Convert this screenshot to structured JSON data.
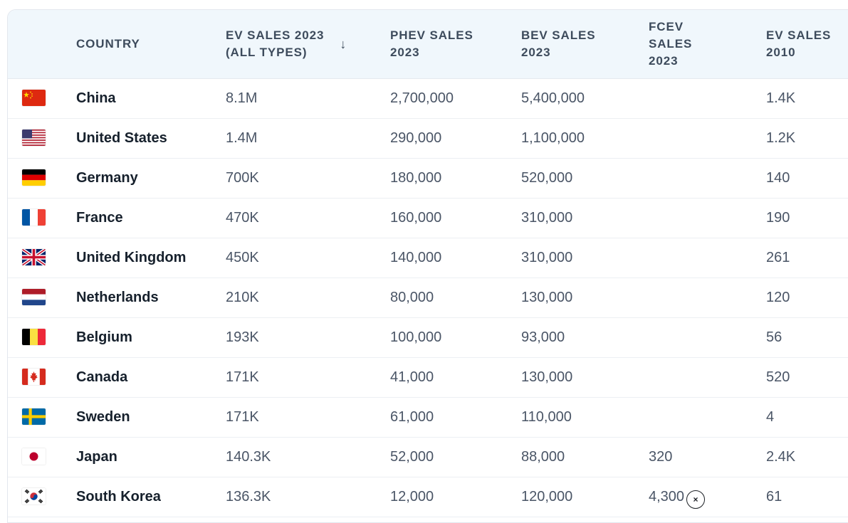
{
  "table": {
    "columns": {
      "country": "COUNTRY",
      "ev_sales_2023_line1": "EV SALES 2023",
      "ev_sales_2023_line2": "(ALL TYPES)",
      "phev_line1": "PHEV SALES",
      "phev_line2": "2023",
      "bev_line1": "BEV SALES",
      "bev_line2": "2023",
      "fcev_line1": "FCEV",
      "fcev_line2": "SALES",
      "fcev_line3": "2023",
      "ev2010_line1": "EV SALES",
      "ev2010_line2": "2010"
    },
    "sort_icon": "arrow-down-icon",
    "rows": [
      {
        "flag": "china-flag",
        "country": "China",
        "ev_2023": "8.1M",
        "phev_2023": "2,700,000",
        "bev_2023": "5,400,000",
        "fcev_2023": "",
        "ev_2010": "1.4K"
      },
      {
        "flag": "usa-flag",
        "country": "United States",
        "ev_2023": "1.4M",
        "phev_2023": "290,000",
        "bev_2023": "1,100,000",
        "fcev_2023": "",
        "ev_2010": "1.2K"
      },
      {
        "flag": "germany-flag",
        "country": "Germany",
        "ev_2023": "700K",
        "phev_2023": "180,000",
        "bev_2023": "520,000",
        "fcev_2023": "",
        "ev_2010": "140"
      },
      {
        "flag": "france-flag",
        "country": "France",
        "ev_2023": "470K",
        "phev_2023": "160,000",
        "bev_2023": "310,000",
        "fcev_2023": "",
        "ev_2010": "190"
      },
      {
        "flag": "uk-flag",
        "country": "United Kingdom",
        "ev_2023": "450K",
        "phev_2023": "140,000",
        "bev_2023": "310,000",
        "fcev_2023": "",
        "ev_2010": "261"
      },
      {
        "flag": "netherlands-flag",
        "country": "Netherlands",
        "ev_2023": "210K",
        "phev_2023": "80,000",
        "bev_2023": "130,000",
        "fcev_2023": "",
        "ev_2010": "120"
      },
      {
        "flag": "belgium-flag",
        "country": "Belgium",
        "ev_2023": "193K",
        "phev_2023": "100,000",
        "bev_2023": "93,000",
        "fcev_2023": "",
        "ev_2010": "56"
      },
      {
        "flag": "canada-flag",
        "country": "Canada",
        "ev_2023": "171K",
        "phev_2023": "41,000",
        "bev_2023": "130,000",
        "fcev_2023": "",
        "ev_2010": "520"
      },
      {
        "flag": "sweden-flag",
        "country": "Sweden",
        "ev_2023": "171K",
        "phev_2023": "61,000",
        "bev_2023": "110,000",
        "fcev_2023": "",
        "ev_2010": "4"
      },
      {
        "flag": "japan-flag",
        "country": "Japan",
        "ev_2023": "140.3K",
        "phev_2023": "52,000",
        "bev_2023": "88,000",
        "fcev_2023": "320",
        "ev_2010": "2.4K"
      },
      {
        "flag": "south-korea-flag",
        "country": "South Korea",
        "ev_2023": "136.3K",
        "phev_2023": "12,000",
        "bev_2023": "120,000",
        "fcev_2023": "4,300",
        "ev_2010": "61"
      }
    ]
  },
  "overlay": {
    "close_icon": "close-icon",
    "close_glyph": "×"
  }
}
